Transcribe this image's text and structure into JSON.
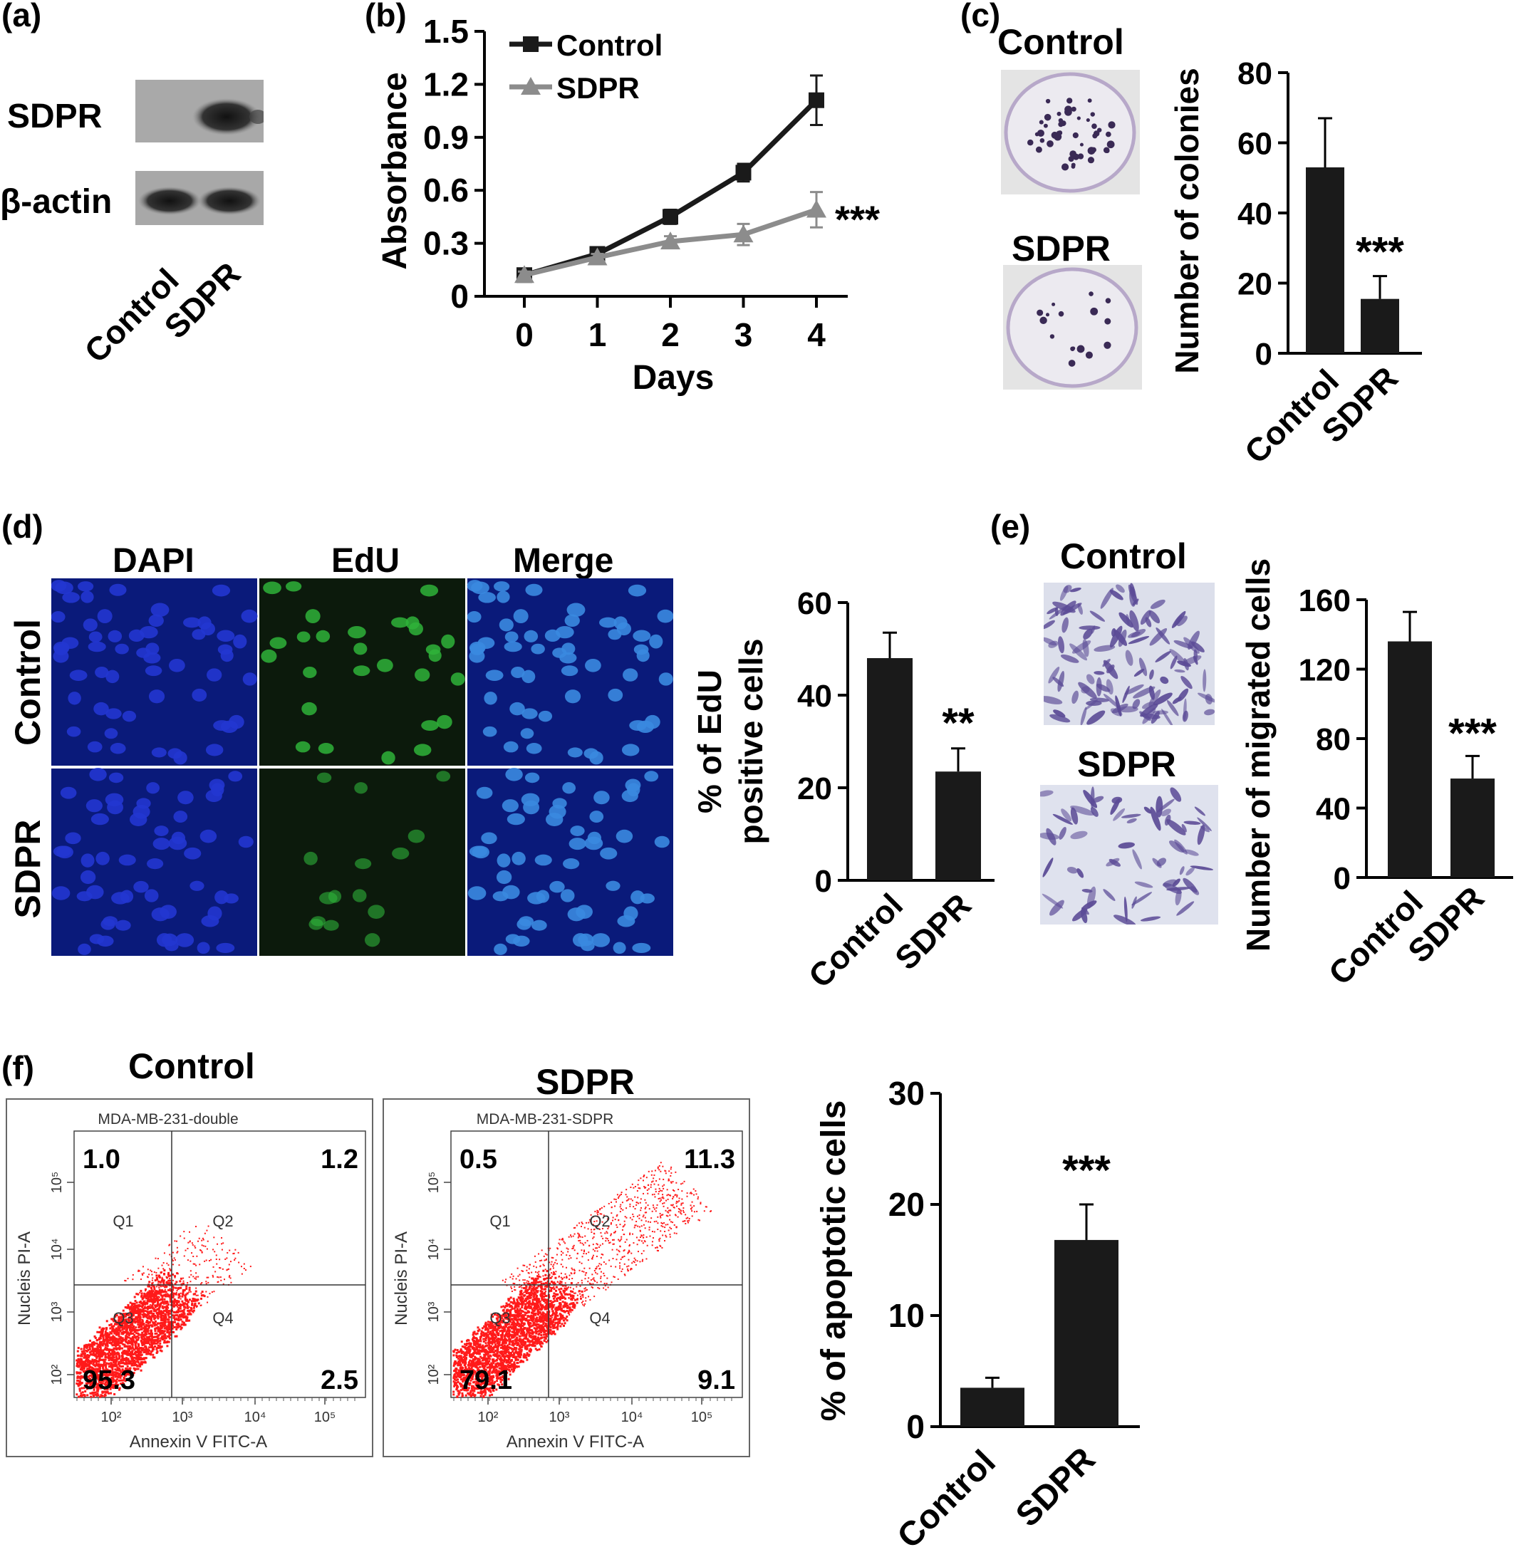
{
  "colors": {
    "bar": "#1a1a1a",
    "control_line": "#1a1a1a",
    "sdpr_line": "#8c8c8c",
    "dot": "#ff1a1a"
  },
  "panel_a": {
    "label": "(a)",
    "rows": [
      "SDPR",
      "β-actin"
    ],
    "lanes": [
      "Control",
      "SDPR"
    ]
  },
  "panel_b": {
    "label": "(b)",
    "sig": "***"
  },
  "panel_c": {
    "label": "(c)",
    "img_titles": [
      "Control",
      "SDPR"
    ],
    "sig": "***"
  },
  "panel_d": {
    "label": "(d)",
    "col_titles": [
      "DAPI",
      "EdU",
      "Merge"
    ],
    "row_titles": [
      "Control",
      "SDPR"
    ],
    "sig": "**"
  },
  "panel_e": {
    "label": "(e)",
    "img_titles": [
      "Control",
      "SDPR"
    ],
    "sig": "***"
  },
  "panel_f": {
    "label": "(f)",
    "plots": [
      {
        "title": "Control",
        "sample": "MDA-MB-231-double",
        "q": [
          "1.0",
          "1.2",
          "95.3",
          "2.5"
        ]
      },
      {
        "title": "SDPR",
        "sample": "MDA-MB-231-SDPR",
        "q": [
          "0.5",
          "11.3",
          "79.1",
          "9.1"
        ]
      }
    ],
    "quad_names": [
      "Q1",
      "Q2",
      "Q3",
      "Q4"
    ],
    "x_axis": "Annexin V FITC-A",
    "y_axis": "Nucleis PI-A",
    "ticks": [
      "10²",
      "10³",
      "10⁴",
      "10⁵"
    ],
    "sig": "***"
  },
  "chart_data": [
    {
      "id": "b",
      "type": "line",
      "x": [
        0,
        1,
        2,
        3,
        4
      ],
      "series": [
        {
          "name": "Control",
          "values": [
            0.12,
            0.24,
            0.45,
            0.7,
            1.11
          ],
          "errors": [
            0.02,
            0.03,
            0.04,
            0.05,
            0.14
          ]
        },
        {
          "name": "SDPR",
          "values": [
            0.12,
            0.22,
            0.31,
            0.35,
            0.49
          ],
          "errors": [
            0.02,
            0.02,
            0.03,
            0.06,
            0.1
          ]
        }
      ],
      "xlabel": "Days",
      "ylabel": "Absorbance",
      "xticks": [
        "0",
        "1",
        "2",
        "3",
        "4"
      ],
      "yticks": [
        "0",
        "0.3",
        "0.6",
        "0.9",
        "1.2",
        "1.5"
      ],
      "ylim": [
        0,
        1.5
      ],
      "legend": "top-left"
    },
    {
      "id": "c",
      "type": "bar",
      "categories": [
        "Control",
        "SDPR"
      ],
      "values": [
        53,
        15.5
      ],
      "errors": [
        14,
        6.5
      ],
      "ylabel": "Number of colonies",
      "yticks": [
        "0",
        "20",
        "40",
        "60",
        "80"
      ],
      "ylim": [
        0,
        80
      ]
    },
    {
      "id": "d",
      "type": "bar",
      "categories": [
        "Control",
        "SDPR"
      ],
      "values": [
        48,
        23.5
      ],
      "errors": [
        5.5,
        5
      ],
      "ylabel": [
        "% of EdU",
        "positive cells"
      ],
      "yticks": [
        "0",
        "20",
        "40",
        "60"
      ],
      "ylim": [
        0,
        60
      ]
    },
    {
      "id": "e",
      "type": "bar",
      "categories": [
        "Control",
        "SDPR"
      ],
      "values": [
        136,
        57
      ],
      "errors": [
        17,
        13
      ],
      "ylabel": "Number of migrated cells",
      "yticks": [
        "0",
        "40",
        "80",
        "120",
        "160"
      ],
      "ylim": [
        0,
        160
      ]
    },
    {
      "id": "f",
      "type": "bar",
      "categories": [
        "Control",
        "SDPR"
      ],
      "values": [
        3.5,
        16.8
      ],
      "errors": [
        0.9,
        3.2
      ],
      "ylabel": "% of apoptotic cells",
      "yticks": [
        "0",
        "10",
        "20",
        "30"
      ],
      "ylim": [
        0,
        30
      ]
    }
  ]
}
